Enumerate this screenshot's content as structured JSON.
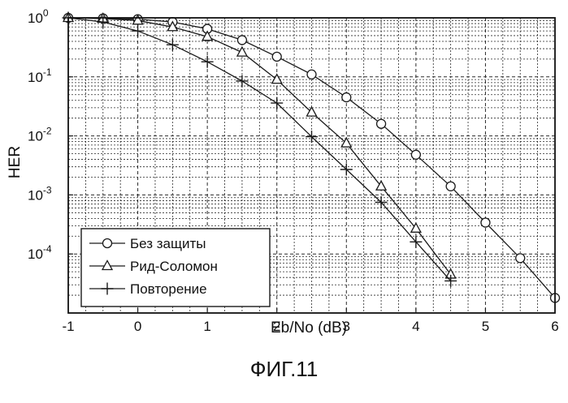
{
  "chart_data": {
    "type": "line",
    "title": "",
    "xlabel": "Eb/No (dB)",
    "ylabel": "HER",
    "xlim": [
      -1,
      6
    ],
    "ylim": [
      1e-05,
      1
    ],
    "yscale": "log",
    "grid": true,
    "legend_position": "bottom-left",
    "x_ticks": [
      -1,
      0,
      1,
      2,
      3,
      4,
      5,
      6
    ],
    "x_tick_labels": [
      "-1",
      "0",
      "1",
      "2",
      "3",
      "4",
      "5",
      "6"
    ],
    "y_ticks": [
      1,
      0.1,
      0.01,
      0.001,
      0.0001
    ],
    "y_tick_labels": [
      {
        "base": "10",
        "exp": "0"
      },
      {
        "base": "10",
        "exp": "-1"
      },
      {
        "base": "10",
        "exp": "-2"
      },
      {
        "base": "10",
        "exp": "-3"
      },
      {
        "base": "10",
        "exp": "-4"
      }
    ],
    "series": [
      {
        "name": "Без защиты",
        "marker": "circle",
        "x": [
          -1,
          -0.5,
          0,
          0.5,
          1,
          1.5,
          2,
          2.5,
          3,
          3.5,
          4,
          4.5,
          5,
          5.5,
          6
        ],
        "y": [
          1,
          0.98,
          0.95,
          0.85,
          0.65,
          0.42,
          0.22,
          0.11,
          0.045,
          0.016,
          0.0048,
          0.0014,
          0.00034,
          8.5e-05,
          1.8e-05
        ]
      },
      {
        "name": "Рид-Соломон",
        "marker": "triangle",
        "x": [
          -1,
          -0.5,
          0,
          0.5,
          1,
          1.5,
          2,
          2.5,
          3,
          3.5,
          4,
          4.5
        ],
        "y": [
          1,
          0.97,
          0.9,
          0.7,
          0.48,
          0.26,
          0.09,
          0.025,
          0.0075,
          0.0014,
          0.00027,
          4.5e-05
        ]
      },
      {
        "name": "Повторение",
        "marker": "plus",
        "x": [
          -1,
          -0.5,
          0,
          0.5,
          1,
          1.5,
          2,
          2.5,
          3,
          3.5,
          4,
          4.5
        ],
        "y": [
          1,
          0.85,
          0.6,
          0.35,
          0.18,
          0.085,
          0.036,
          0.0097,
          0.0027,
          0.00075,
          0.00016,
          3.5e-05
        ]
      }
    ]
  },
  "caption": "ФИГ.11",
  "colors": {
    "line": "#1a1a1a",
    "grid": "#2a2a2a",
    "background": "#ffffff"
  }
}
